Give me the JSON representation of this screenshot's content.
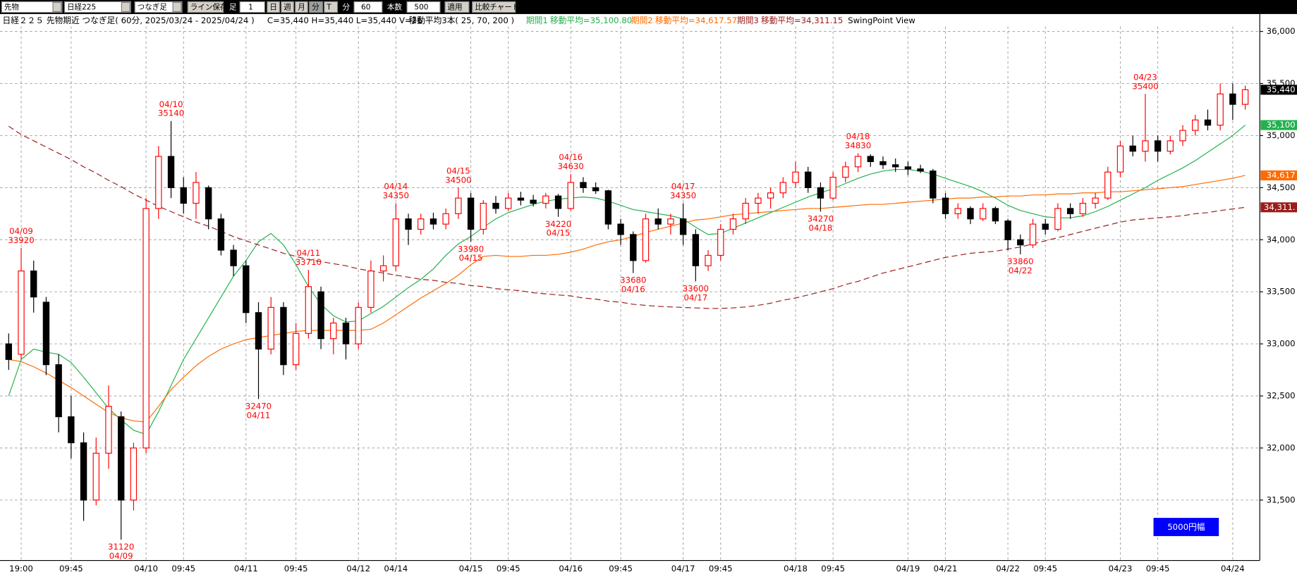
{
  "toolbar": {
    "items": [
      "先物",
      "日経225",
      "つなぎ足",
      "ライン保存",
      "足",
      "1",
      "日",
      "週",
      "月",
      "分",
      "T",
      "分",
      "60",
      "本数",
      "500",
      "適用",
      "比較チャート"
    ]
  },
  "chart_data": {
    "type": "candlestick",
    "title": "日経２２５ 先物期近 つなぎ足( 60分, 2025/03/24 - 2025/04/24 )",
    "ohlcv": "C=35,440 H=35,440 L=35,440 V=26",
    "ma_title": "移動平均3本( 25, 70, 200 )",
    "swing_title": "SwingPoint View",
    "range_badge": "5000円幅",
    "close_tag": "35,440",
    "up_color": "#ff0000",
    "down_color": "#000000",
    "grid": true,
    "ylim": [
      30920,
      36048
    ],
    "yticks": [
      {
        "value": 31500,
        "label": "31,500"
      },
      {
        "value": 32000,
        "label": "32,000"
      },
      {
        "value": 32500,
        "label": "32,500"
      },
      {
        "value": 33000,
        "label": "33,000"
      },
      {
        "value": 33500,
        "label": "33,500"
      },
      {
        "value": 34000,
        "label": "34,000"
      },
      {
        "value": 34500,
        "label": "34,500"
      },
      {
        "value": 35000,
        "label": "35,000"
      },
      {
        "value": 35500,
        "label": "35,500"
      },
      {
        "value": 36000,
        "label": "36,000"
      }
    ],
    "categories": [
      null,
      "19:00",
      null,
      null,
      null,
      "09:45",
      null,
      null,
      null,
      null,
      null,
      "04/10",
      null,
      null,
      "09:45",
      null,
      null,
      null,
      null,
      "04/11",
      null,
      null,
      null,
      "09:45",
      null,
      null,
      null,
      null,
      "04/12",
      null,
      null,
      "04/14",
      null,
      null,
      null,
      null,
      null,
      "04/15",
      null,
      null,
      "09:45",
      null,
      null,
      null,
      null,
      "04/16",
      null,
      null,
      null,
      "09:45",
      null,
      null,
      null,
      null,
      "04/17",
      null,
      null,
      "09:45",
      null,
      null,
      null,
      null,
      null,
      "04/18",
      null,
      null,
      "09:45",
      null,
      null,
      null,
      null,
      null,
      "04/19",
      null,
      null,
      "04/21",
      null,
      null,
      null,
      null,
      "04/22",
      null,
      null,
      "09:45",
      null,
      null,
      null,
      null,
      null,
      "04/23",
      null,
      null,
      "09:45",
      null,
      null,
      null,
      null,
      null,
      "04/24",
      null
    ],
    "candles": [
      {
        "o": 33000,
        "h": 33100,
        "l": 32750,
        "c": 32850
      },
      {
        "o": 32900,
        "h": 33920,
        "l": 32850,
        "c": 33700,
        "high_date": "04/09"
      },
      {
        "o": 33700,
        "h": 33800,
        "l": 33300,
        "c": 33450
      },
      {
        "o": 33400,
        "h": 33450,
        "l": 32700,
        "c": 32800
      },
      {
        "o": 32800,
        "h": 32900,
        "l": 32150,
        "c": 32300
      },
      {
        "o": 32300,
        "h": 32500,
        "l": 31900,
        "c": 32050
      },
      {
        "o": 32050,
        "h": 32150,
        "l": 31300,
        "c": 31500
      },
      {
        "o": 31500,
        "h": 32100,
        "l": 31450,
        "c": 31950
      },
      {
        "o": 31950,
        "h": 32600,
        "l": 31800,
        "c": 32400
      },
      {
        "o": 32300,
        "h": 32350,
        "l": 31120,
        "c": 31500,
        "low_date": "04/09"
      },
      {
        "o": 31500,
        "h": 32050,
        "l": 31400,
        "c": 32000
      },
      {
        "o": 32000,
        "h": 34400,
        "l": 31950,
        "c": 34300
      },
      {
        "o": 34300,
        "h": 34900,
        "l": 34200,
        "c": 34800
      },
      {
        "o": 34800,
        "h": 35140,
        "l": 34400,
        "c": 34500,
        "high_date": "04/10"
      },
      {
        "o": 34500,
        "h": 34600,
        "l": 34250,
        "c": 34350
      },
      {
        "o": 34350,
        "h": 34650,
        "l": 34200,
        "c": 34550
      },
      {
        "o": 34500,
        "h": 34520,
        "l": 34100,
        "c": 34200
      },
      {
        "o": 34200,
        "h": 34250,
        "l": 33850,
        "c": 33900
      },
      {
        "o": 33900,
        "h": 33950,
        "l": 33650,
        "c": 33750
      },
      {
        "o": 33750,
        "h": 33800,
        "l": 33200,
        "c": 33300
      },
      {
        "o": 33300,
        "h": 33400,
        "l": 32470,
        "c": 32950,
        "low_date": "04/11"
      },
      {
        "o": 32950,
        "h": 33450,
        "l": 32900,
        "c": 33350
      },
      {
        "o": 33350,
        "h": 33400,
        "l": 32700,
        "c": 32800
      },
      {
        "o": 32800,
        "h": 33200,
        "l": 32750,
        "c": 33100
      },
      {
        "o": 33100,
        "h": 33710,
        "l": 33050,
        "c": 33550,
        "high_date": "04/11"
      },
      {
        "o": 33500,
        "h": 33550,
        "l": 32950,
        "c": 33050
      },
      {
        "o": 33050,
        "h": 33250,
        "l": 32900,
        "c": 33200
      },
      {
        "o": 33200,
        "h": 33250,
        "l": 32850,
        "c": 33000
      },
      {
        "o": 33000,
        "h": 33400,
        "l": 32950,
        "c": 33350
      },
      {
        "o": 33350,
        "h": 33800,
        "l": 33300,
        "c": 33700
      },
      {
        "o": 33700,
        "h": 33850,
        "l": 33600,
        "c": 33750
      },
      {
        "o": 33750,
        "h": 34350,
        "l": 33700,
        "c": 34200,
        "high_date": "04/14"
      },
      {
        "o": 34200,
        "h": 34250,
        "l": 33950,
        "c": 34100
      },
      {
        "o": 34100,
        "h": 34250,
        "l": 34050,
        "c": 34200
      },
      {
        "o": 34200,
        "h": 34260,
        "l": 34100,
        "c": 34150
      },
      {
        "o": 34150,
        "h": 34300,
        "l": 34100,
        "c": 34250
      },
      {
        "o": 34250,
        "h": 34500,
        "l": 34200,
        "c": 34400,
        "high_date": "04/15"
      },
      {
        "o": 34400,
        "h": 34450,
        "l": 33980,
        "c": 34100,
        "low_date": "04/15"
      },
      {
        "o": 34100,
        "h": 34380,
        "l": 34050,
        "c": 34350
      },
      {
        "o": 34350,
        "h": 34420,
        "l": 34250,
        "c": 34300
      },
      {
        "o": 34300,
        "h": 34450,
        "l": 34280,
        "c": 34400
      },
      {
        "o": 34400,
        "h": 34460,
        "l": 34330,
        "c": 34380
      },
      {
        "o": 34380,
        "h": 34430,
        "l": 34320,
        "c": 34350
      },
      {
        "o": 34350,
        "h": 34450,
        "l": 34300,
        "c": 34420
      },
      {
        "o": 34420,
        "h": 34440,
        "l": 34220,
        "c": 34300,
        "low_date": "04/15"
      },
      {
        "o": 34300,
        "h": 34630,
        "l": 34280,
        "c": 34550,
        "high_date": "04/16"
      },
      {
        "o": 34550,
        "h": 34600,
        "l": 34450,
        "c": 34500
      },
      {
        "o": 34500,
        "h": 34550,
        "l": 34440,
        "c": 34470
      },
      {
        "o": 34470,
        "h": 34480,
        "l": 34100,
        "c": 34150
      },
      {
        "o": 34150,
        "h": 34200,
        "l": 33950,
        "c": 34050
      },
      {
        "o": 34050,
        "h": 34080,
        "l": 33680,
        "c": 33800,
        "low_date": "04/16"
      },
      {
        "o": 33800,
        "h": 34250,
        "l": 33780,
        "c": 34200
      },
      {
        "o": 34200,
        "h": 34300,
        "l": 34100,
        "c": 34150
      },
      {
        "o": 34150,
        "h": 34250,
        "l": 34050,
        "c": 34200
      },
      {
        "o": 34200,
        "h": 34350,
        "l": 33950,
        "c": 34050,
        "high_date": "04/17"
      },
      {
        "o": 34050,
        "h": 34100,
        "l": 33600,
        "c": 33750,
        "low_date": "04/17"
      },
      {
        "o": 33750,
        "h": 33900,
        "l": 33700,
        "c": 33850
      },
      {
        "o": 33850,
        "h": 34150,
        "l": 33800,
        "c": 34100
      },
      {
        "o": 34100,
        "h": 34250,
        "l": 34050,
        "c": 34200
      },
      {
        "o": 34200,
        "h": 34400,
        "l": 34150,
        "c": 34350
      },
      {
        "o": 34350,
        "h": 34450,
        "l": 34250,
        "c": 34400
      },
      {
        "o": 34400,
        "h": 34500,
        "l": 34300,
        "c": 34450
      },
      {
        "o": 34450,
        "h": 34600,
        "l": 34400,
        "c": 34550
      },
      {
        "o": 34550,
        "h": 34750,
        "l": 34500,
        "c": 34650
      },
      {
        "o": 34650,
        "h": 34700,
        "l": 34450,
        "c": 34500
      },
      {
        "o": 34500,
        "h": 34550,
        "l": 34270,
        "c": 34400,
        "low_date": "04/18"
      },
      {
        "o": 34400,
        "h": 34650,
        "l": 34380,
        "c": 34600
      },
      {
        "o": 34600,
        "h": 34750,
        "l": 34550,
        "c": 34700
      },
      {
        "o": 34700,
        "h": 34830,
        "l": 34650,
        "c": 34800,
        "high_date": "04/18"
      },
      {
        "o": 34800,
        "h": 34820,
        "l": 34700,
        "c": 34750
      },
      {
        "o": 34750,
        "h": 34800,
        "l": 34680,
        "c": 34720
      },
      {
        "o": 34720,
        "h": 34780,
        "l": 34650,
        "c": 34700
      },
      {
        "o": 34700,
        "h": 34750,
        "l": 34620,
        "c": 34680
      },
      {
        "o": 34680,
        "h": 34720,
        "l": 34640,
        "c": 34660
      },
      {
        "o": 34660,
        "h": 34680,
        "l": 34350,
        "c": 34400
      },
      {
        "o": 34400,
        "h": 34450,
        "l": 34200,
        "c": 34250
      },
      {
        "o": 34250,
        "h": 34350,
        "l": 34200,
        "c": 34300
      },
      {
        "o": 34300,
        "h": 34320,
        "l": 34150,
        "c": 34200
      },
      {
        "o": 34200,
        "h": 34350,
        "l": 34180,
        "c": 34300
      },
      {
        "o": 34300,
        "h": 34320,
        "l": 34150,
        "c": 34180
      },
      {
        "o": 34180,
        "h": 34200,
        "l": 33900,
        "c": 34000
      },
      {
        "o": 34000,
        "h": 34050,
        "l": 33860,
        "c": 33950,
        "low_date": "04/22"
      },
      {
        "o": 33950,
        "h": 34200,
        "l": 33920,
        "c": 34150
      },
      {
        "o": 34150,
        "h": 34200,
        "l": 34050,
        "c": 34100
      },
      {
        "o": 34100,
        "h": 34350,
        "l": 34080,
        "c": 34300
      },
      {
        "o": 34300,
        "h": 34350,
        "l": 34200,
        "c": 34250
      },
      {
        "o": 34250,
        "h": 34400,
        "l": 34220,
        "c": 34350
      },
      {
        "o": 34350,
        "h": 34450,
        "l": 34300,
        "c": 34400
      },
      {
        "o": 34400,
        "h": 34700,
        "l": 34380,
        "c": 34650
      },
      {
        "o": 34650,
        "h": 34950,
        "l": 34600,
        "c": 34900
      },
      {
        "o": 34900,
        "h": 35000,
        "l": 34800,
        "c": 34850
      },
      {
        "o": 34850,
        "h": 35400,
        "l": 34750,
        "c": 34950,
        "high_date": "04/23"
      },
      {
        "o": 34950,
        "h": 35000,
        "l": 34750,
        "c": 34850
      },
      {
        "o": 34850,
        "h": 35000,
        "l": 34820,
        "c": 34950
      },
      {
        "o": 34950,
        "h": 35100,
        "l": 34900,
        "c": 35050
      },
      {
        "o": 35050,
        "h": 35200,
        "l": 35000,
        "c": 35150
      },
      {
        "o": 35150,
        "h": 35250,
        "l": 35050,
        "c": 35100
      },
      {
        "o": 35100,
        "h": 35500,
        "l": 35050,
        "c": 35400
      },
      {
        "o": 35400,
        "h": 35500,
        "l": 35150,
        "c": 35300
      },
      {
        "o": 35300,
        "h": 35480,
        "l": 35250,
        "c": 35440
      }
    ],
    "series": [
      {
        "name": "期間1",
        "value_label": "移動平均=35,100.80",
        "tag": "35,100",
        "color": "#22b14c",
        "dashed": false,
        "values": [
          32500,
          32850,
          32950,
          32920,
          32900,
          32820,
          32680,
          32530,
          32380,
          32270,
          32170,
          32130,
          32350,
          32600,
          32850,
          33050,
          33250,
          33450,
          33650,
          33800,
          33980,
          34060,
          33950,
          33760,
          33550,
          33380,
          33270,
          33210,
          33220,
          33290,
          33360,
          33450,
          33540,
          33620,
          33720,
          33850,
          33960,
          34030,
          34120,
          34200,
          34260,
          34300,
          34340,
          34370,
          34390,
          34400,
          34410,
          34400,
          34370,
          34330,
          34290,
          34270,
          34250,
          34230,
          34200,
          34120,
          34050,
          34060,
          34110,
          34160,
          34210,
          34260,
          34310,
          34360,
          34410,
          34450,
          34490,
          34540,
          34590,
          34630,
          34660,
          34675,
          34675,
          34660,
          34630,
          34590,
          34550,
          34510,
          34460,
          34400,
          34330,
          34280,
          34250,
          34220,
          34210,
          34210,
          34230,
          34270,
          34320,
          34380,
          34440,
          34500,
          34570,
          34630,
          34690,
          34760,
          34840,
          34920,
          35000,
          35100.8
        ]
      },
      {
        "name": "期間2",
        "value_label": "移動平均=34,617.57",
        "tag": "34,617",
        "color": "#ff6a00",
        "dashed": false,
        "values": [
          32850,
          32830,
          32780,
          32720,
          32650,
          32580,
          32500,
          32420,
          32340,
          32290,
          32260,
          32250,
          32400,
          32560,
          32680,
          32790,
          32880,
          32950,
          33000,
          33040,
          33060,
          33080,
          33100,
          33120,
          33130,
          33130,
          33130,
          33130,
          33130,
          33140,
          33200,
          33280,
          33360,
          33440,
          33510,
          33580,
          33660,
          33760,
          33840,
          33850,
          33840,
          33840,
          33850,
          33850,
          33860,
          33880,
          33910,
          33950,
          33980,
          34000,
          34030,
          34070,
          34100,
          34130,
          34160,
          34190,
          34200,
          34220,
          34240,
          34250,
          34260,
          34270,
          34280,
          34290,
          34300,
          34300,
          34310,
          34320,
          34330,
          34340,
          34340,
          34350,
          34360,
          34370,
          34380,
          34390,
          34400,
          34400,
          34410,
          34410,
          34420,
          34420,
          34430,
          34430,
          34440,
          34440,
          34450,
          34450,
          34460,
          34460,
          34470,
          34480,
          34490,
          34500,
          34510,
          34530,
          34550,
          34570,
          34590,
          34617.57
        ]
      },
      {
        "name": "期間3",
        "value_label": "移動平均=34,311.15",
        "tag": "34,311.",
        "color": "#9b1c1c",
        "dashed": true,
        "values": [
          35090,
          35010,
          34950,
          34890,
          34830,
          34770,
          34700,
          34640,
          34570,
          34510,
          34440,
          34380,
          34320,
          34270,
          34220,
          34170,
          34130,
          34080,
          34030,
          33990,
          33950,
          33910,
          33870,
          33840,
          33810,
          33790,
          33770,
          33750,
          33720,
          33700,
          33680,
          33660,
          33640,
          33620,
          33610,
          33590,
          33580,
          33560,
          33550,
          33530,
          33520,
          33510,
          33490,
          33480,
          33470,
          33460,
          33440,
          33430,
          33410,
          33400,
          33380,
          33370,
          33360,
          33355,
          33350,
          33345,
          33340,
          33340,
          33345,
          33355,
          33370,
          33390,
          33420,
          33440,
          33470,
          33500,
          33530,
          33570,
          33600,
          33640,
          33680,
          33710,
          33740,
          33770,
          33800,
          33830,
          33850,
          33870,
          33880,
          33890,
          33910,
          33930,
          33960,
          33990,
          34020,
          34050,
          34080,
          34110,
          34140,
          34170,
          34190,
          34200,
          34210,
          34220,
          34230,
          34250,
          34260,
          34280,
          34295,
          34311.15
        ]
      }
    ]
  }
}
